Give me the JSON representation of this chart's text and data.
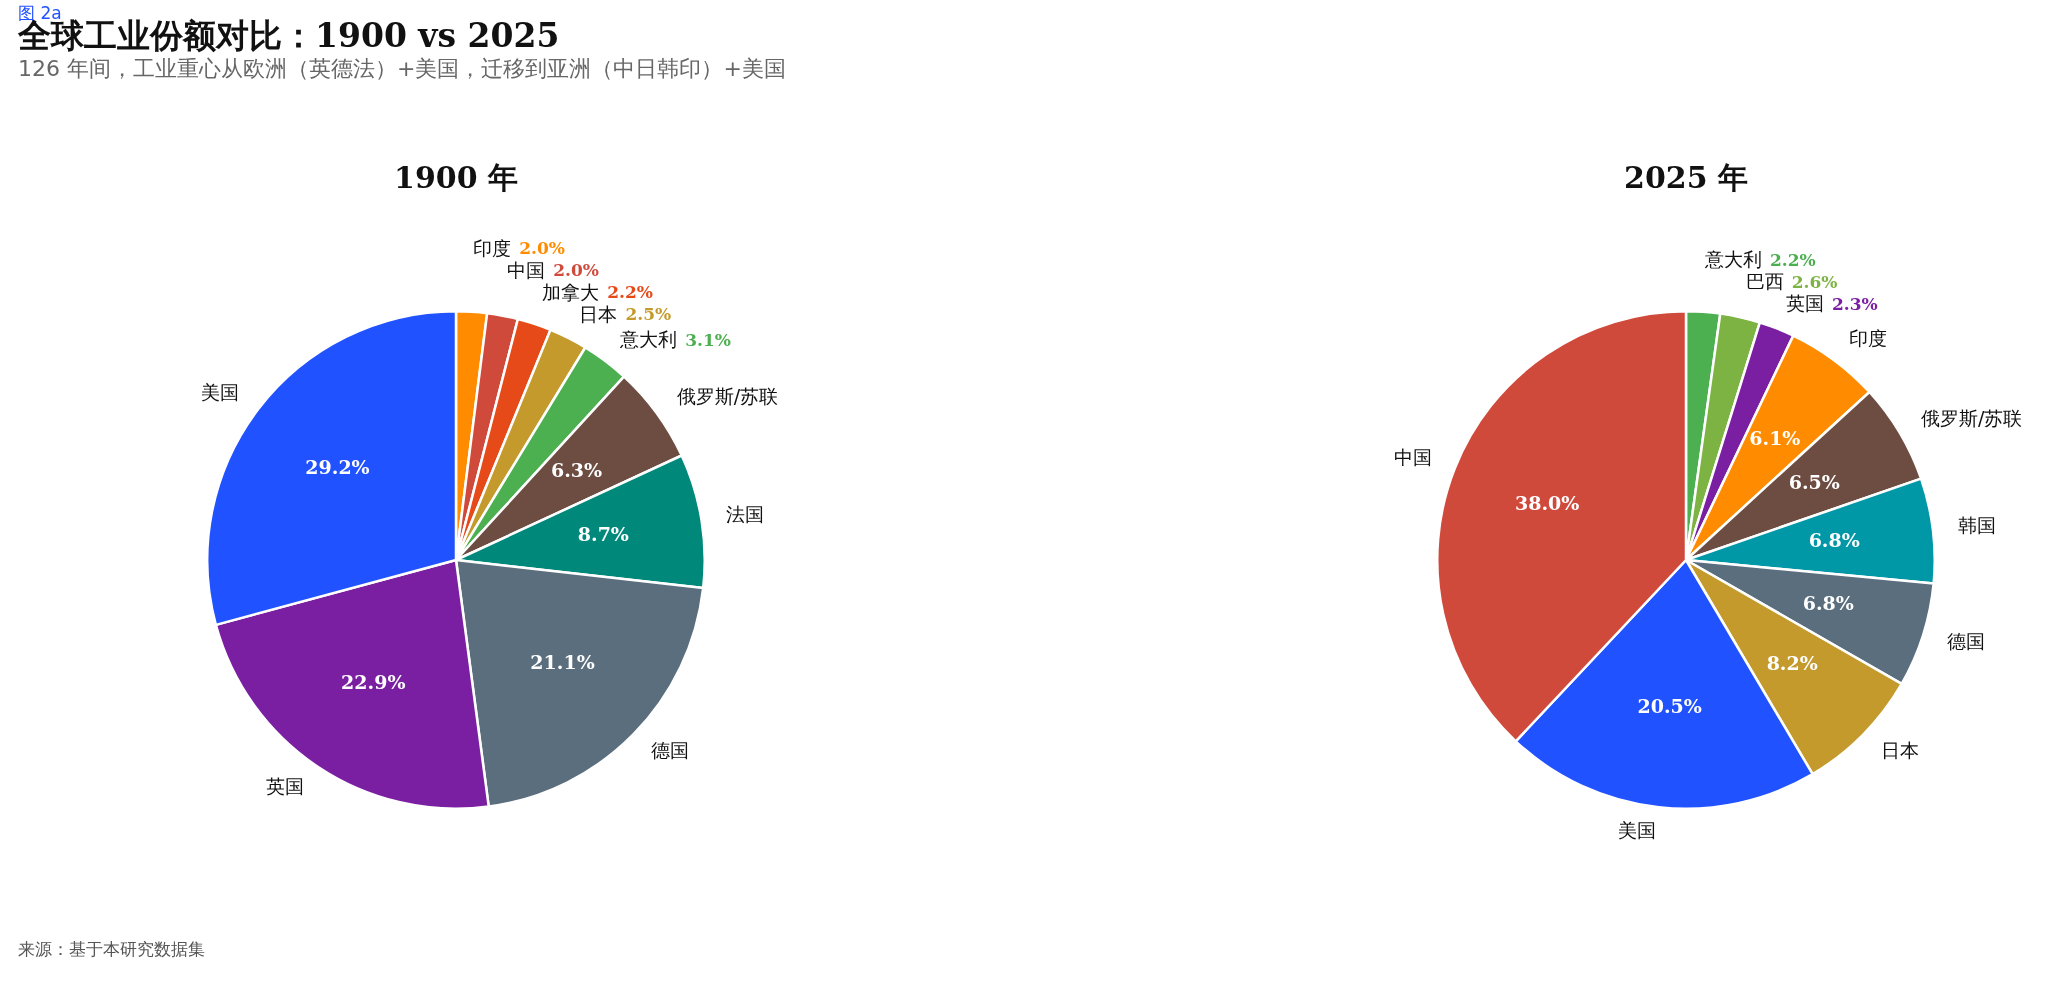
{
  "chart_data": [
    {
      "type": "pie",
      "title": "1900 年",
      "categories": [
        "印度",
        "中国",
        "加拿大",
        "日本",
        "意大利",
        "俄罗斯/苏联",
        "法国",
        "德国",
        "英国",
        "美国"
      ],
      "values": [
        2.0,
        2.0,
        2.2,
        2.5,
        3.1,
        6.3,
        8.7,
        21.1,
        22.9,
        29.2
      ],
      "value_labels": [
        "2.0%",
        "2.0%",
        "2.2%",
        "2.5%",
        "3.1%",
        "6.3%",
        "8.7%",
        "21.1%",
        "22.9%",
        "29.2%"
      ],
      "colors": [
        "#ff8c00",
        "#d04a3c",
        "#e64a19",
        "#c49a2c",
        "#4caf50",
        "#6d4c41",
        "#00897b",
        "#5a6e7e",
        "#7b1fa2",
        "#2152ff"
      ],
      "legend": false,
      "annotations": [
        "图 2a",
        "全球工业份额对比：1900 vs 2025",
        "126 年间，工业重心从欧洲（英德法）+美国，迁移到亚洲（中日韩印）+美国",
        "来源：基于本研究数据集"
      ]
    },
    {
      "type": "pie",
      "title": "2025 年",
      "categories": [
        "意大利",
        "巴西",
        "英国",
        "印度",
        "俄罗斯/苏联",
        "韩国",
        "德国",
        "日本",
        "美国",
        "中国"
      ],
      "values": [
        2.2,
        2.6,
        2.3,
        6.1,
        6.5,
        6.8,
        6.8,
        8.2,
        20.5,
        38.0
      ],
      "value_labels": [
        "2.2%",
        "2.6%",
        "2.3%",
        "6.1%",
        "6.5%",
        "6.8%",
        "6.8%",
        "8.2%",
        "20.5%",
        "38.0%"
      ],
      "colors": [
        "#4caf50",
        "#7cb342",
        "#7b1fa2",
        "#ff8c00",
        "#6d4c41",
        "#0097a7",
        "#5a6e7e",
        "#c49a2c",
        "#2152ff",
        "#d04a3c"
      ],
      "legend": false
    }
  ]
}
